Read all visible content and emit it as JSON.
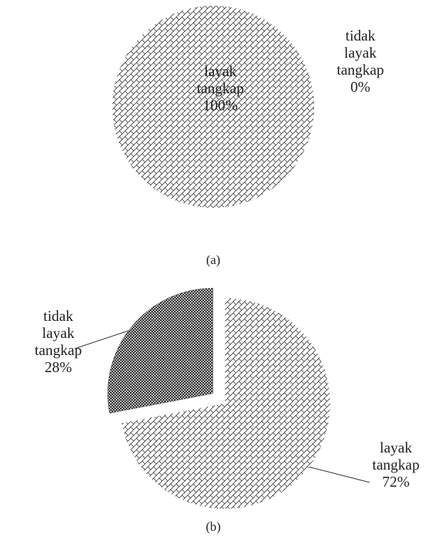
{
  "chart_data": [
    {
      "type": "pie",
      "caption": "(a)",
      "categories": [
        "layak tangkap",
        "tidak layak tangkap"
      ],
      "values": [
        100,
        0
      ],
      "value_labels": [
        "100%",
        "0%"
      ],
      "colors": [
        "#ffffff",
        "#444444"
      ]
    },
    {
      "type": "pie",
      "caption": "(b)",
      "categories": [
        "layak tangkap",
        "tidak layak tangkap"
      ],
      "values": [
        72,
        28
      ],
      "value_labels": [
        "72%",
        "28%"
      ],
      "colors": [
        "#ffffff",
        "#444444"
      ]
    }
  ]
}
